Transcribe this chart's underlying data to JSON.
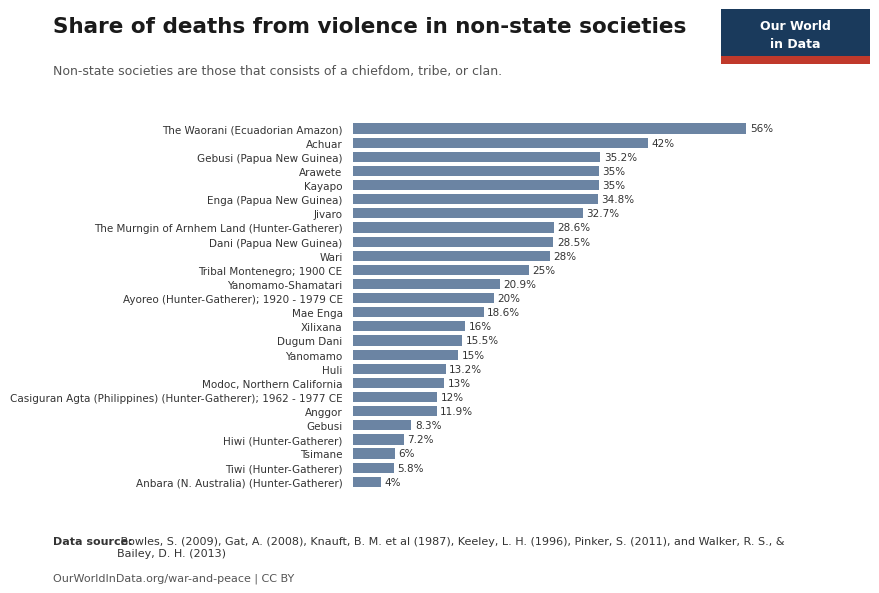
{
  "title": "Share of deaths from violence in non-state societies",
  "subtitle": "Non-state societies are those that consists of a chiefdom, tribe, or clan.",
  "categories": [
    "The Waorani (Ecuadorian Amazon)",
    "Achuar",
    "Gebusi (Papua New Guinea)",
    "Arawete",
    "Kayapo",
    "Enga (Papua New Guinea)",
    "Jivaro",
    "The Murngin of Arnhem Land (Hunter-Gatherer)",
    "Dani (Papua New Guinea)",
    "Wari",
    "Tribal Montenegro; 1900 CE",
    "Yanomamo-Shamatari",
    "Ayoreo (Hunter-Gatherer); 1920 - 1979 CE",
    "Mae Enga",
    "Xilixana",
    "Dugum Dani",
    "Yanomamo",
    "Huli",
    "Modoc, Northern California",
    "Casiguran Agta (Philippines) (Hunter-Gatherer); 1962 - 1977 CE",
    "Anggor",
    "Gebusi",
    "Hiwi (Hunter-Gatherer)",
    "Tsimane",
    "Tiwi (Hunter-Gatherer)",
    "Anbara (N. Australia) (Hunter-Gatherer)"
  ],
  "values": [
    56,
    42,
    35.2,
    35,
    35,
    34.8,
    32.7,
    28.6,
    28.5,
    28,
    25,
    20.9,
    20,
    18.6,
    16,
    15.5,
    15,
    13.2,
    13,
    12,
    11.9,
    8.3,
    7.2,
    6,
    5.8,
    4
  ],
  "labels": [
    "56%",
    "42%",
    "35.2%",
    "35%",
    "35%",
    "34.8%",
    "32.7%",
    "28.6%",
    "28.5%",
    "28%",
    "25%",
    "20.9%",
    "20%",
    "18.6%",
    "16%",
    "15.5%",
    "15%",
    "13.2%",
    "13%",
    "12%",
    "11.9%",
    "8.3%",
    "7.2%",
    "6%",
    "5.8%",
    "4%"
  ],
  "bar_color": "#6b84a3",
  "background_color": "#ffffff",
  "datasource_bold": "Data source:",
  "datasource_normal": " Bowles, S. (2009), Gat, A. (2008), Knauft, B. M. et al (1987), Keeley, L. H. (1996), Pinker, S. (2011), and Walker, R. S., &\nBailey, D. H. (2013)",
  "footer": "OurWorldInData.org/war-and-peace | CC BY",
  "logo_text1": "Our World",
  "logo_text2": "in Data",
  "logo_bg": "#1a3a5c",
  "logo_stripe": "#c0392b"
}
